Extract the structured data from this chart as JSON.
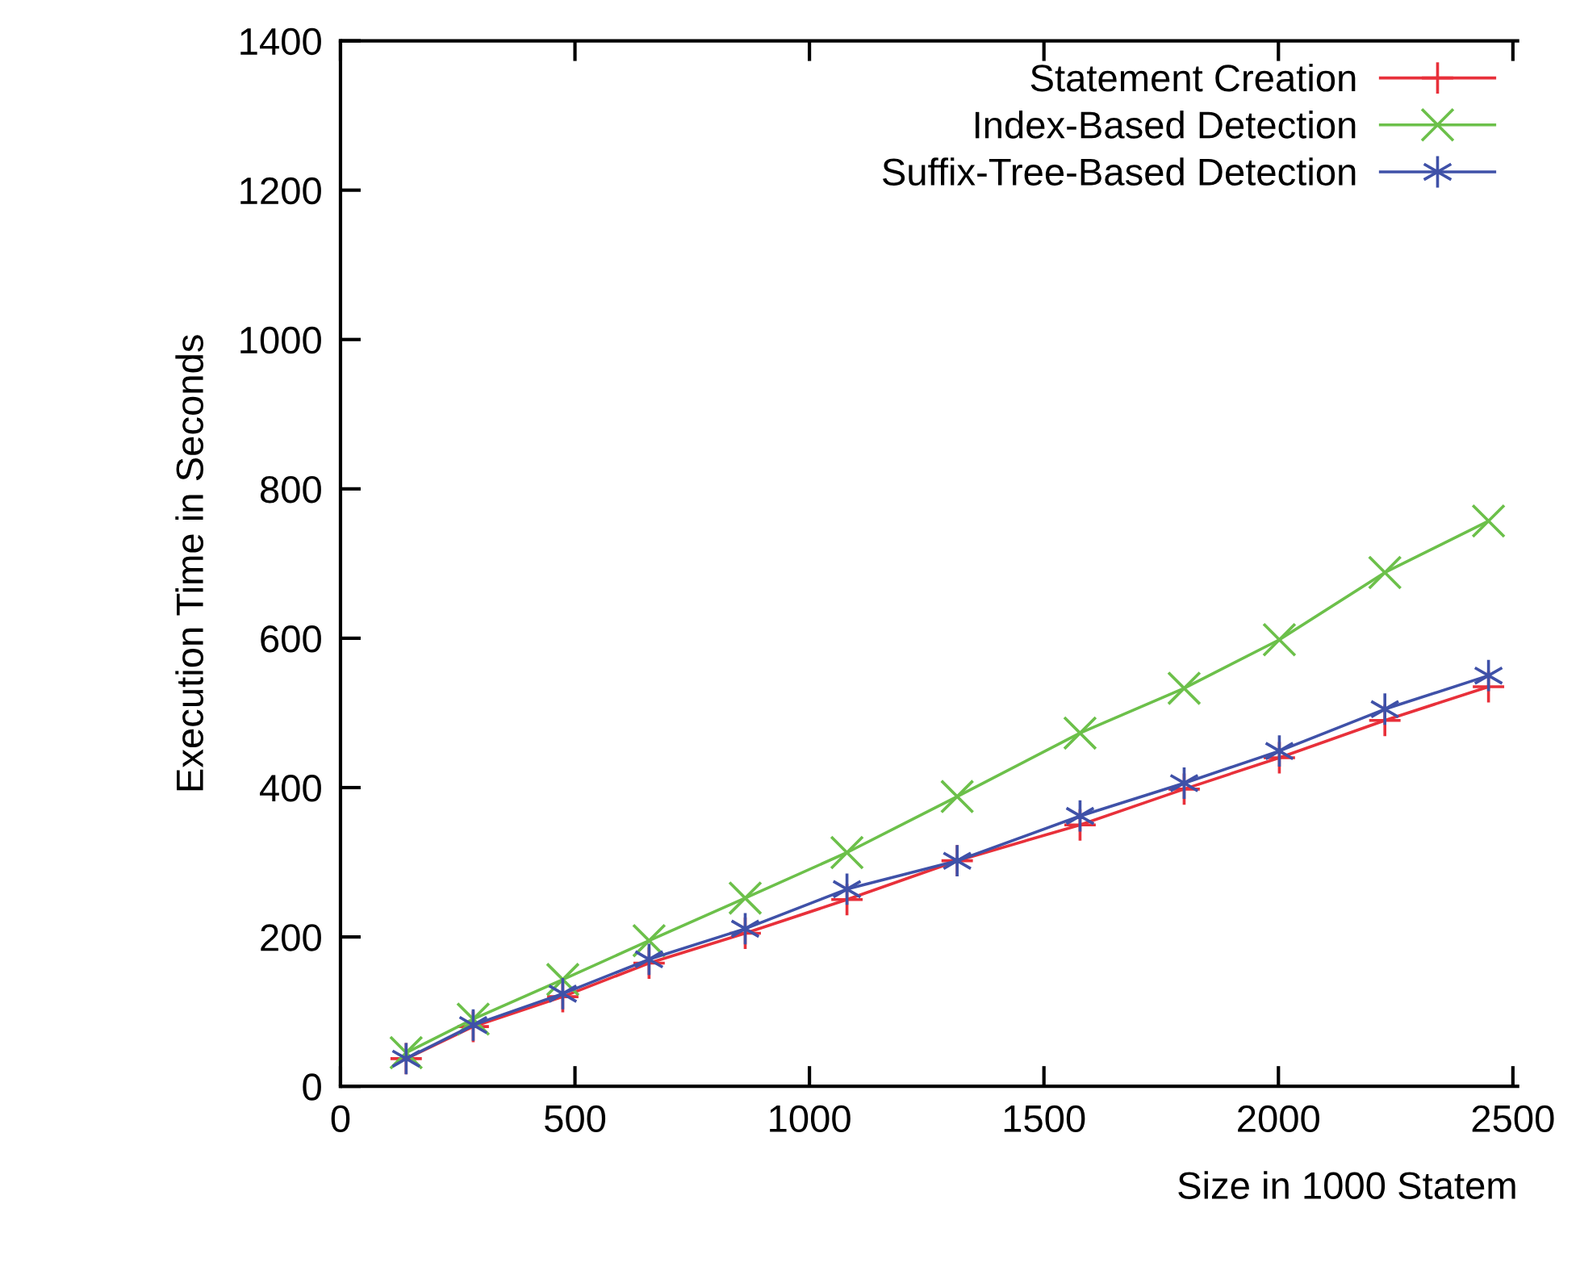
{
  "chart_data": {
    "type": "line",
    "xlabel": "Size in 1000 Statem",
    "ylabel": "Execution Time in Seconds",
    "x": [
      140,
      283,
      474,
      658,
      863,
      1080,
      1315,
      1577,
      1799,
      2002,
      2227,
      2448
    ],
    "series": [
      {
        "name": "Statement Creation",
        "color": "#e8303a",
        "marker": "cross",
        "values": [
          37,
          80,
          120,
          165,
          205,
          250,
          302,
          350,
          398,
          440,
          490,
          535
        ]
      },
      {
        "name": "Index-Based Detection",
        "color": "#6cc04a",
        "marker": "cross",
        "values": [
          45,
          90,
          143,
          195,
          252,
          313,
          388,
          473,
          533,
          598,
          688,
          757
        ]
      },
      {
        "name": "Suffix-Tree-Based Detection",
        "color": "#3f51a8",
        "marker": "cross",
        "values": [
          37,
          82,
          124,
          170,
          211,
          264,
          302,
          362,
          406,
          449,
          505,
          550
        ]
      }
    ],
    "xlim": [
      0,
      2510
    ],
    "ylim": [
      0,
      1400
    ],
    "xticks": [
      0,
      500,
      1000,
      1500,
      2000,
      2500
    ],
    "yticks": [
      0,
      200,
      400,
      600,
      800,
      1000,
      1200,
      1400
    ],
    "legend": "top right",
    "grid": false,
    "line_style": "solid"
  }
}
